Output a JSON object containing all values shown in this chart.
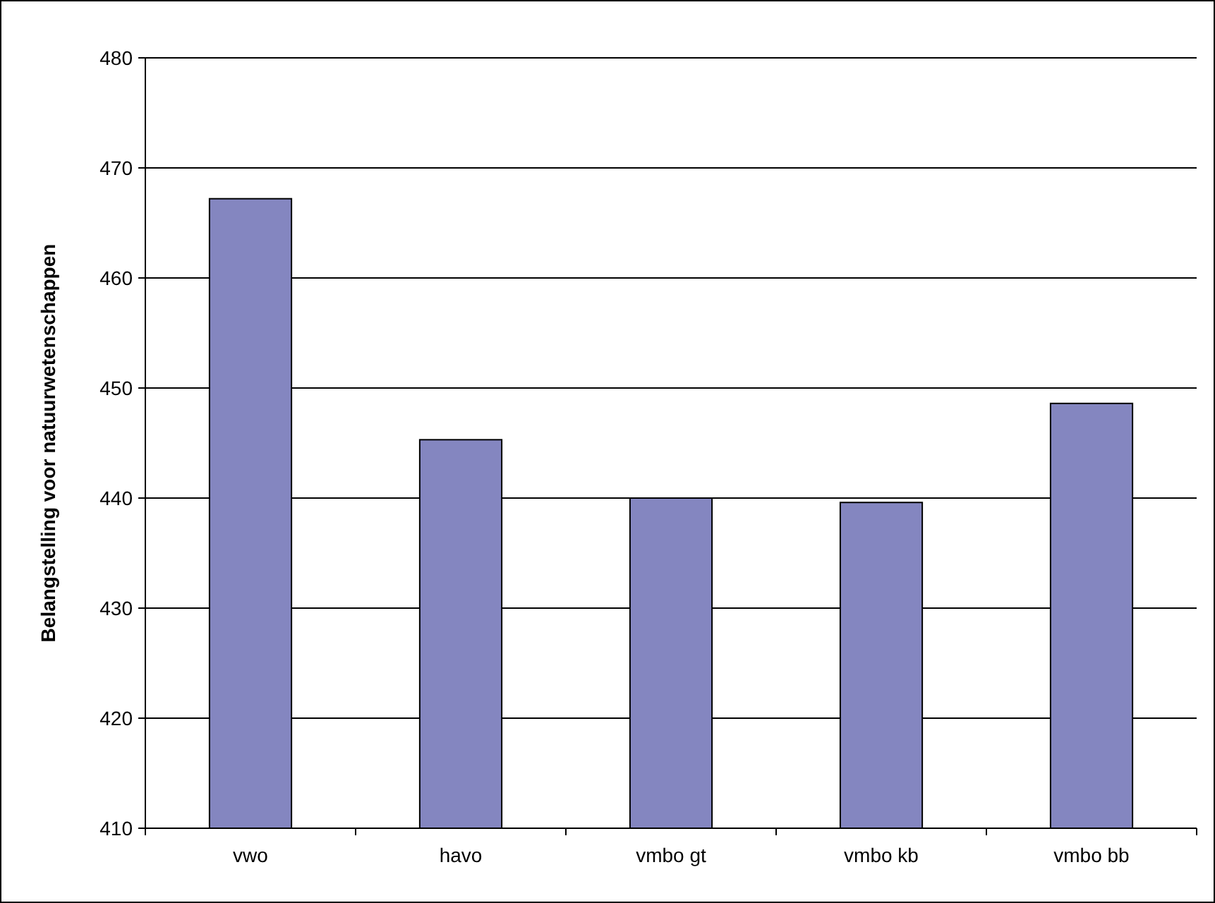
{
  "chart_data": {
    "type": "bar",
    "ylabel": "Belangstelling voor natuurwetenschappen",
    "categories": [
      "vwo",
      "havo",
      "vmbo gt",
      "vmbo kb",
      "vmbo bb"
    ],
    "values": [
      467.2,
      445.3,
      440.0,
      439.6,
      448.6
    ],
    "color": "#8486c0",
    "ylim": [
      410,
      480
    ],
    "yticks": [
      410,
      420,
      430,
      440,
      450,
      460,
      470,
      480
    ],
    "grid": "y"
  }
}
